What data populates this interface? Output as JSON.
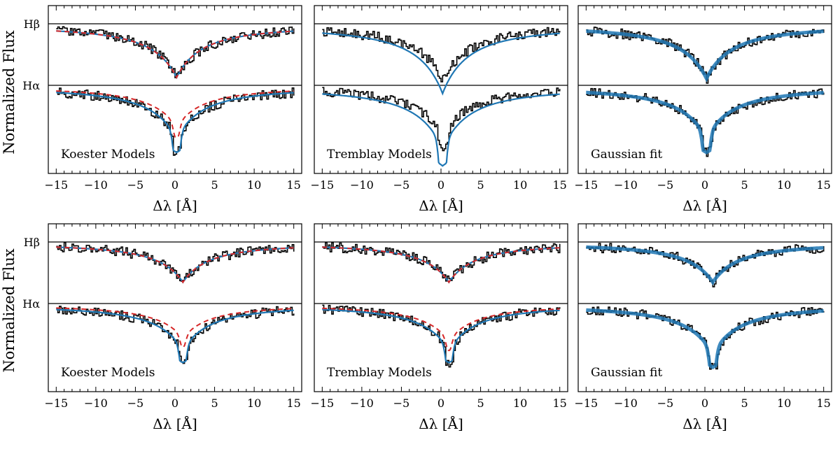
{
  "figure": {
    "ylabel": "Normalized Flux",
    "line_labels": [
      "Hβ",
      "Hα"
    ],
    "colors": {
      "observed": "#000000",
      "model": "#1f77b4",
      "alt_model": "#d62728"
    }
  },
  "chart_data": [
    {
      "type": "line",
      "row": 1,
      "col": 1,
      "label": "Koester Models",
      "fit": "model",
      "xlabel": "Δλ [Å]",
      "xlim": [
        -16,
        16
      ],
      "xticks": [
        -15,
        -10,
        -5,
        0,
        5,
        10,
        15
      ],
      "center": 0.2,
      "hb_depth": 1.0,
      "ha_depth": 1.0,
      "ha_core": 0.6,
      "dashed": true,
      "ha_dash_depth": 0.78,
      "series": [
        {
          "name": "Hβ"
        },
        {
          "name": "Hα"
        }
      ]
    },
    {
      "type": "line",
      "row": 1,
      "col": 2,
      "label": "Tremblay Models",
      "fit": "model",
      "xlabel": "Δλ [Å]",
      "xlim": [
        -16,
        16
      ],
      "xticks": [
        -15,
        -10,
        -5,
        0,
        5,
        10,
        15
      ],
      "center": 0.2,
      "hb_depth": 1.3,
      "ha_depth": 1.2,
      "ha_core": 0.75,
      "obs_hb_depth": 1.05,
      "obs_ha_depth": 0.95,
      "dashed": false,
      "series": [
        {
          "name": "Hβ"
        },
        {
          "name": "Hα"
        }
      ]
    },
    {
      "type": "line",
      "row": 1,
      "col": 3,
      "label": "Gaussian fit",
      "fit": "gaussian",
      "xlabel": "Δλ [Å]",
      "xlim": [
        -16,
        16
      ],
      "xticks": [
        -15,
        -10,
        -5,
        0,
        5,
        10,
        15
      ],
      "center": 0.2,
      "hb_depth": 1.02,
      "ha_depth": 1.0,
      "ha_core": 0.6,
      "dashed": false,
      "series": [
        {
          "name": "Hβ"
        },
        {
          "name": "Hα"
        }
      ]
    },
    {
      "type": "line",
      "row": 2,
      "col": 1,
      "label": "Koester Models",
      "fit": "model",
      "xlabel": "Δλ [Å]",
      "xlim": [
        -16,
        16
      ],
      "xticks": [
        -15,
        -10,
        -5,
        0,
        5,
        10,
        15
      ],
      "center": 1.0,
      "hb_depth": 0.75,
      "ha_depth": 0.88,
      "ha_core": 0.5,
      "dashed": true,
      "ha_dash_depth": 0.65,
      "series": [
        {
          "name": "Hβ"
        },
        {
          "name": "Hα"
        }
      ]
    },
    {
      "type": "line",
      "row": 2,
      "col": 2,
      "label": "Tremblay Models",
      "fit": "model",
      "xlabel": "Δλ [Å]",
      "xlim": [
        -16,
        16
      ],
      "xticks": [
        -15,
        -10,
        -5,
        0,
        5,
        10,
        15
      ],
      "center": 1.0,
      "hb_depth": 0.75,
      "ha_depth": 0.88,
      "ha_core": 0.5,
      "dashed": true,
      "ha_dash_depth": 0.7,
      "series": [
        {
          "name": "Hβ"
        },
        {
          "name": "Hα"
        }
      ]
    },
    {
      "type": "line",
      "row": 2,
      "col": 3,
      "label": "Gaussian fit",
      "fit": "gaussian",
      "xlabel": "Δλ [Å]",
      "xlim": [
        -16,
        16
      ],
      "xticks": [
        -15,
        -10,
        -5,
        0,
        5,
        10,
        15
      ],
      "center": 1.0,
      "hb_depth": 0.75,
      "ha_depth": 0.95,
      "ha_core": 0.5,
      "dashed": false,
      "series": [
        {
          "name": "Hβ"
        },
        {
          "name": "Hα"
        }
      ]
    }
  ]
}
